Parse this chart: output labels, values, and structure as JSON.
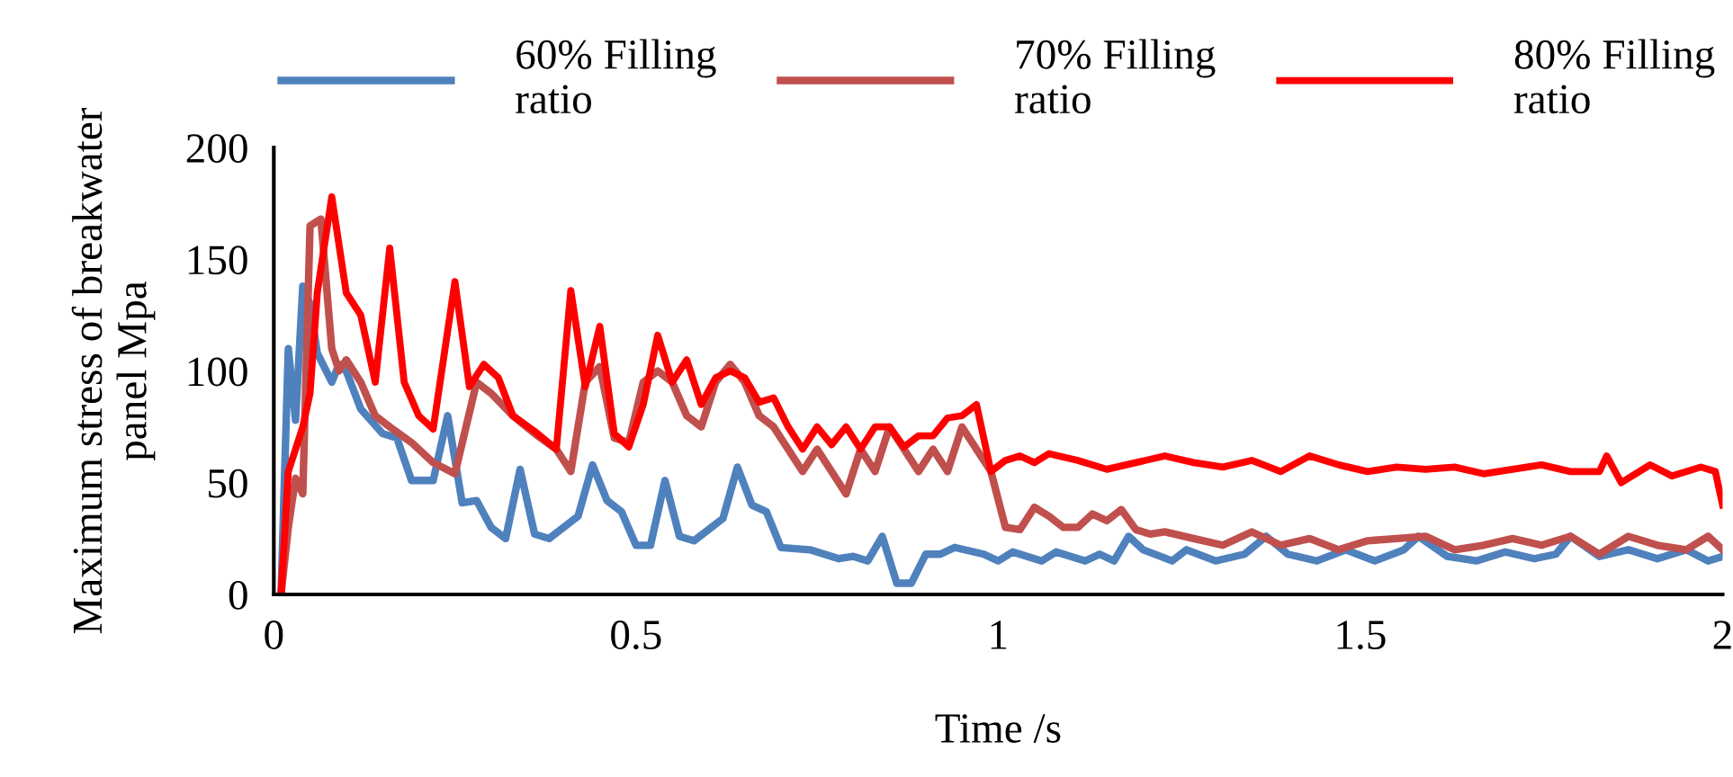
{
  "chart_data": {
    "type": "line",
    "xlabel": "Time /s",
    "ylabel": "Maximum stress of breakwater\npanel Mpa",
    "xlim": [
      0,
      2
    ],
    "xticks": [
      0,
      0.5,
      1,
      1.5,
      2
    ],
    "ylim": [
      0,
      200
    ],
    "yticks": [
      0,
      50,
      100,
      150,
      200
    ],
    "grid": false,
    "legend": "top",
    "marker": "none",
    "line_style": "solid",
    "series": [
      {
        "name": "60% Filling\nratio",
        "color": "#4f81bd",
        "x": [
          0.01,
          0.02,
          0.03,
          0.04,
          0.05,
          0.06,
          0.08,
          0.09,
          0.1,
          0.12,
          0.15,
          0.17,
          0.19,
          0.22,
          0.24,
          0.26,
          0.28,
          0.3,
          0.32,
          0.34,
          0.36,
          0.38,
          0.42,
          0.44,
          0.46,
          0.48,
          0.5,
          0.52,
          0.54,
          0.56,
          0.58,
          0.62,
          0.64,
          0.66,
          0.68,
          0.7,
          0.74,
          0.78,
          0.8,
          0.82,
          0.84,
          0.86,
          0.88,
          0.9,
          0.92,
          0.94,
          0.98,
          1.0,
          1.02,
          1.06,
          1.08,
          1.12,
          1.14,
          1.16,
          1.18,
          1.2,
          1.24,
          1.26,
          1.3,
          1.34,
          1.37,
          1.4,
          1.44,
          1.48,
          1.52,
          1.56,
          1.58,
          1.62,
          1.66,
          1.7,
          1.74,
          1.77,
          1.79,
          1.83,
          1.87,
          1.91,
          1.95,
          1.98,
          2.0
        ],
        "values": [
          0,
          110,
          78,
          138,
          130,
          108,
          95,
          103,
          100,
          83,
          72,
          70,
          51,
          51,
          80,
          41,
          42,
          30,
          25,
          56,
          27,
          25,
          35,
          58,
          42,
          37,
          22,
          22,
          51,
          26,
          24,
          34,
          57,
          40,
          37,
          21,
          20,
          16,
          17,
          15,
          26,
          5,
          5,
          18,
          18,
          21,
          18,
          15,
          19,
          15,
          19,
          15,
          18,
          15,
          26,
          20,
          15,
          20,
          15,
          18,
          26,
          18,
          15,
          20,
          15,
          20,
          26,
          17,
          15,
          19,
          16,
          18,
          26,
          17,
          20,
          16,
          20,
          15,
          17
        ]
      },
      {
        "name": "70% Filling\nratio",
        "color": "#c0504d",
        "x": [
          0.01,
          0.02,
          0.03,
          0.04,
          0.05,
          0.065,
          0.08,
          0.09,
          0.1,
          0.12,
          0.14,
          0.16,
          0.19,
          0.2,
          0.22,
          0.25,
          0.28,
          0.3,
          0.33,
          0.36,
          0.39,
          0.41,
          0.43,
          0.45,
          0.47,
          0.49,
          0.51,
          0.53,
          0.55,
          0.57,
          0.59,
          0.61,
          0.63,
          0.65,
          0.67,
          0.69,
          0.71,
          0.73,
          0.75,
          0.77,
          0.79,
          0.81,
          0.83,
          0.85,
          0.87,
          0.89,
          0.91,
          0.93,
          0.95,
          0.97,
          0.99,
          1.01,
          1.03,
          1.05,
          1.07,
          1.09,
          1.11,
          1.13,
          1.15,
          1.17,
          1.19,
          1.21,
          1.23,
          1.27,
          1.31,
          1.35,
          1.39,
          1.43,
          1.47,
          1.51,
          1.55,
          1.59,
          1.63,
          1.67,
          1.71,
          1.75,
          1.79,
          1.83,
          1.87,
          1.91,
          1.95,
          1.98,
          2.0
        ],
        "values": [
          0,
          30,
          52,
          45,
          165,
          168,
          110,
          100,
          105,
          95,
          80,
          75,
          68,
          65,
          59,
          54,
          95,
          90,
          80,
          72,
          65,
          55,
          95,
          102,
          70,
          68,
          95,
          100,
          95,
          80,
          75,
          95,
          103,
          95,
          80,
          75,
          65,
          55,
          65,
          55,
          45,
          65,
          55,
          75,
          65,
          55,
          65,
          55,
          75,
          65,
          55,
          30,
          29,
          39,
          35,
          30,
          30,
          36,
          33,
          38,
          29,
          27,
          28,
          25,
          22,
          28,
          22,
          25,
          20,
          24,
          25,
          26,
          20,
          22,
          25,
          22,
          26,
          18,
          26,
          22,
          20,
          26,
          20
        ]
      },
      {
        "name": "80% Filling\nratio",
        "color": "#ff0000",
        "x": [
          0.01,
          0.02,
          0.04,
          0.05,
          0.06,
          0.08,
          0.1,
          0.12,
          0.14,
          0.16,
          0.18,
          0.2,
          0.22,
          0.25,
          0.27,
          0.29,
          0.31,
          0.33,
          0.36,
          0.39,
          0.41,
          0.43,
          0.45,
          0.47,
          0.49,
          0.51,
          0.53,
          0.55,
          0.57,
          0.59,
          0.61,
          0.63,
          0.65,
          0.67,
          0.69,
          0.71,
          0.73,
          0.75,
          0.77,
          0.79,
          0.81,
          0.83,
          0.85,
          0.87,
          0.89,
          0.91,
          0.93,
          0.95,
          0.97,
          0.99,
          1.01,
          1.03,
          1.05,
          1.07,
          1.11,
          1.15,
          1.19,
          1.23,
          1.27,
          1.31,
          1.35,
          1.39,
          1.43,
          1.47,
          1.51,
          1.55,
          1.59,
          1.63,
          1.67,
          1.71,
          1.75,
          1.79,
          1.83,
          1.84,
          1.86,
          1.9,
          1.93,
          1.97,
          1.99,
          2.0
        ],
        "values": [
          0,
          55,
          75,
          90,
          135,
          178,
          135,
          125,
          95,
          155,
          95,
          80,
          74,
          140,
          93,
          103,
          97,
          80,
          73,
          65,
          136,
          93,
          120,
          72,
          66,
          85,
          116,
          95,
          105,
          85,
          97,
          100,
          97,
          86,
          88,
          75,
          65,
          75,
          67,
          75,
          65,
          75,
          75,
          66,
          71,
          71,
          79,
          80,
          85,
          55,
          60,
          62,
          59,
          63,
          60,
          56,
          59,
          62,
          59,
          57,
          60,
          55,
          62,
          58,
          55,
          57,
          56,
          57,
          54,
          56,
          58,
          55,
          55,
          62,
          50,
          58,
          53,
          57,
          55,
          40
        ]
      }
    ]
  }
}
